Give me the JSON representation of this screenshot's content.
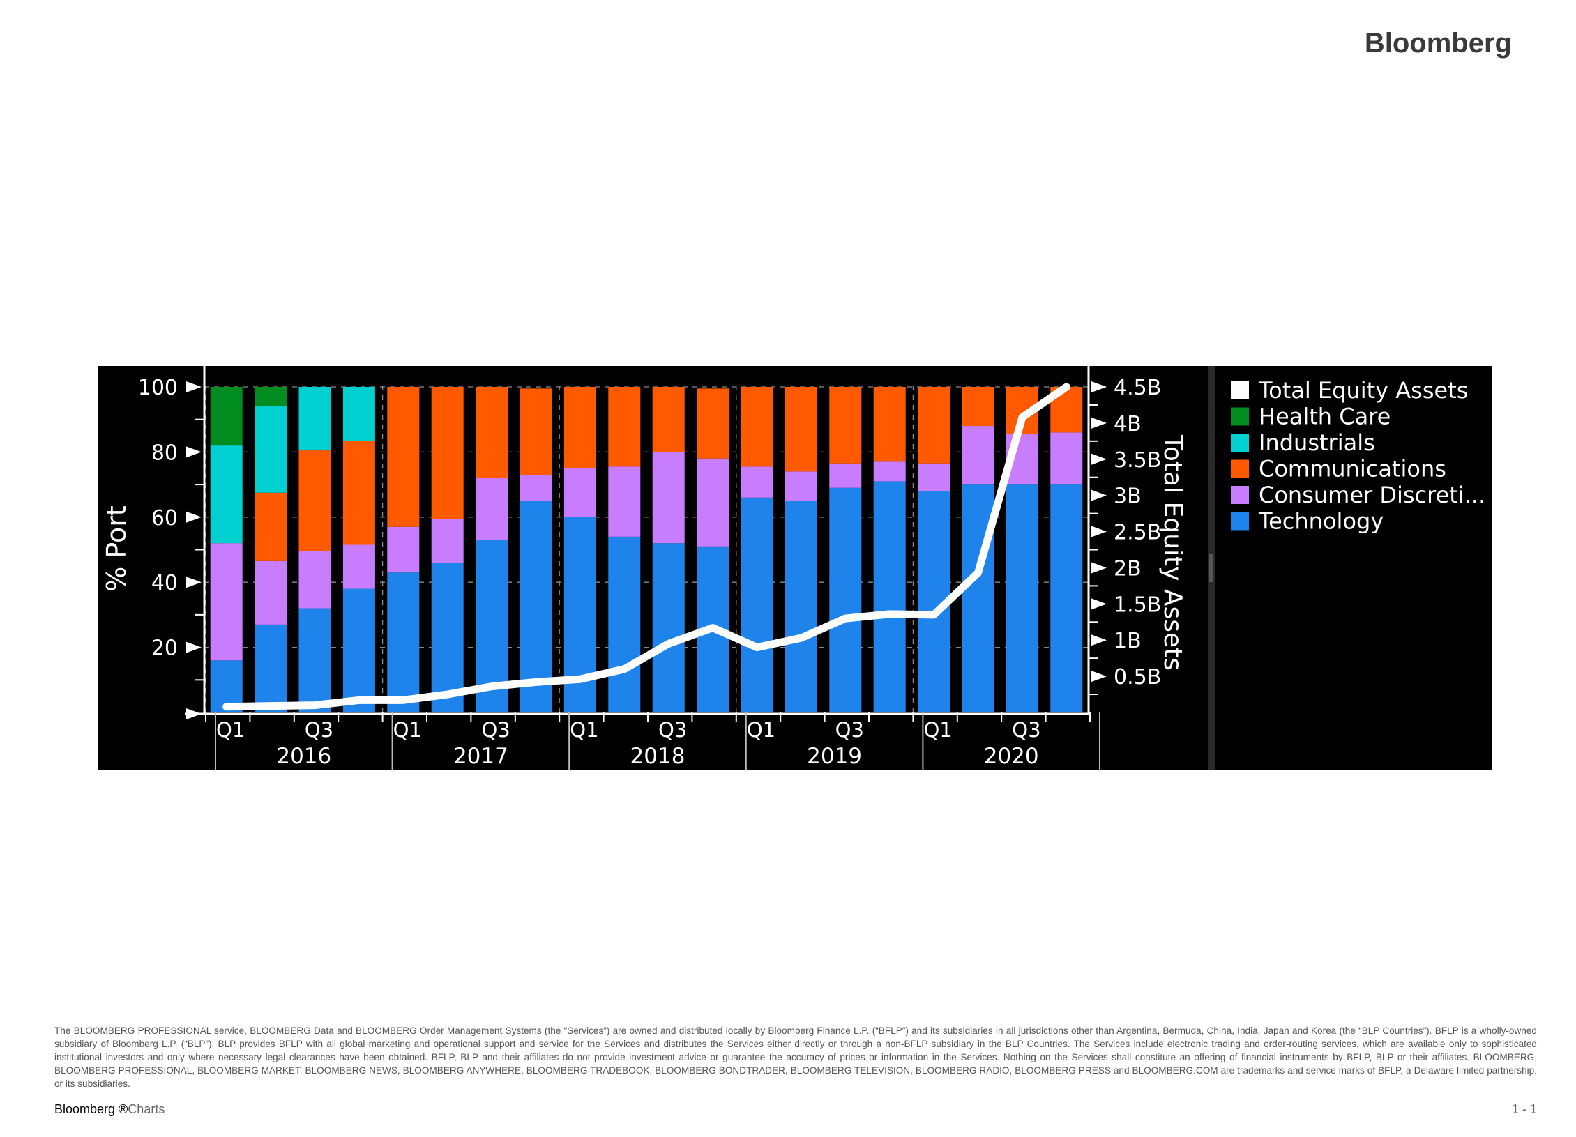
{
  "brand": "Bloomberg",
  "chart_data": {
    "type": "bar",
    "stacked": true,
    "categories": [
      "2016 Q1",
      "2016 Q2",
      "2016 Q3",
      "2016 Q4",
      "2017 Q1",
      "2017 Q2",
      "2017 Q3",
      "2017 Q4",
      "2018 Q1",
      "2018 Q2",
      "2018 Q3",
      "2018 Q4",
      "2019 Q1",
      "2019 Q2",
      "2019 Q3",
      "2019 Q4",
      "2020 Q1",
      "2020 Q2",
      "2020 Q3",
      "2020 Q4"
    ],
    "x_ticks": {
      "quarter_labels": [
        "Q1",
        "Q3",
        "Q1",
        "Q3",
        "Q1",
        "Q3",
        "Q1",
        "Q3",
        "Q1",
        "Q3"
      ],
      "year_labels": [
        "2016",
        "2017",
        "2018",
        "2019",
        "2020"
      ]
    },
    "series": [
      {
        "name": "Technology",
        "color": "#1e84ec",
        "values": [
          16,
          27,
          32,
          38,
          43,
          46,
          53,
          65,
          60,
          54,
          52,
          51,
          66,
          65,
          69,
          71,
          68,
          70,
          70,
          70
        ]
      },
      {
        "name": "Consumer Discreti...",
        "color": "#c87dff",
        "values": [
          36,
          19.5,
          17.5,
          13.5,
          14,
          13.5,
          19,
          8,
          15,
          21.5,
          28,
          27,
          9.5,
          9,
          7.5,
          6,
          8.5,
          18,
          15.5,
          16
        ]
      },
      {
        "name": "Communications",
        "color": "#ff5a00",
        "values": [
          0,
          21,
          31,
          32,
          43,
          40.5,
          28,
          26.5,
          25,
          24.5,
          20,
          21.5,
          24.5,
          26,
          23.5,
          23,
          23.5,
          12,
          14.5,
          14
        ]
      },
      {
        "name": "Industrials",
        "color": "#00d0d0",
        "values": [
          30,
          26.5,
          19.5,
          16.5,
          0,
          0,
          0,
          0,
          0,
          0,
          0,
          0,
          0,
          0,
          0,
          0,
          0,
          0,
          0,
          0
        ]
      },
      {
        "name": "Health Care",
        "color": "#008c1e",
        "values": [
          18,
          6,
          0,
          0,
          0,
          0,
          0,
          0,
          0,
          0,
          0,
          0,
          0,
          0,
          0,
          0,
          0,
          0,
          0,
          0
        ]
      }
    ],
    "line_series": {
      "name": "Total Equity Assets",
      "color": "#ffffff",
      "values": [
        0.08,
        0.09,
        0.1,
        0.17,
        0.17,
        0.25,
        0.36,
        0.42,
        0.46,
        0.6,
        0.95,
        1.17,
        0.9,
        1.03,
        1.3,
        1.36,
        1.35,
        1.93,
        4.08,
        4.5
      ]
    },
    "left_axis": {
      "label": "% Port",
      "ylim": [
        0,
        100
      ],
      "ticks": [
        20,
        40,
        60,
        80,
        100
      ]
    },
    "right_axis": {
      "label": "Total Equity Assets",
      "ylim": [
        0,
        4.5
      ],
      "ticks": [
        "0.5B",
        "1B",
        "1.5B",
        "2B",
        "2.5B",
        "3B",
        "3.5B",
        "4B",
        "4.5B"
      ]
    },
    "legend": {
      "position": "right",
      "entries": [
        {
          "label": "Total Equity Assets",
          "color": "#ffffff"
        },
        {
          "label": "Health Care",
          "color": "#008c1e"
        },
        {
          "label": "Industrials",
          "color": "#00d0d0"
        },
        {
          "label": "Communications",
          "color": "#ff5a00"
        },
        {
          "label": "Consumer Discreti...",
          "color": "#c87dff"
        },
        {
          "label": "Technology",
          "color": "#1e84ec"
        }
      ]
    },
    "grid": true
  },
  "disclaimer": "The BLOOMBERG PROFESSIONAL service, BLOOMBERG Data and BLOOMBERG Order Management Systems (the “Services”) are owned and distributed locally by Bloomberg Finance L.P. (“BFLP”) and its subsidiaries in all jurisdictions other than Argentina, Bermuda, China, India, Japan and Korea (the “BLP Countries”). BFLP is a wholly-owned subsidiary of Bloomberg L.P. (“BLP”). BLP provides BFLP with all global marketing and operational support and service for the Services and distributes the Services either directly or through a non-BFLP subsidiary in the BLP Countries. The Services include electronic trading and order-routing services, which are available only to sophisticated institutional investors and only where necessary legal clearances have been obtained. BFLP, BLP and their affiliates do not provide investment advice or guarantee the accuracy of prices or information in the Services. Nothing on the Services shall constitute an offering of financial instruments by BFLP, BLP or their affiliates. BLOOMBERG, BLOOMBERG PROFESSIONAL, BLOOMBERG MARKET, BLOOMBERG NEWS, BLOOMBERG ANYWHERE, BLOOMBERG TRADEBOOK, BLOOMBERG BONDTRADER, BLOOMBERG TELEVISION, BLOOMBERG RADIO, BLOOMBERG PRESS and BLOOMBERG.COM are trademarks and service marks of BFLP, a Delaware limited partnership, or its subsidiaries.",
  "footer": {
    "left_brand": "Bloomberg ®",
    "left_suffix": "Charts",
    "page": "1 - 1"
  }
}
